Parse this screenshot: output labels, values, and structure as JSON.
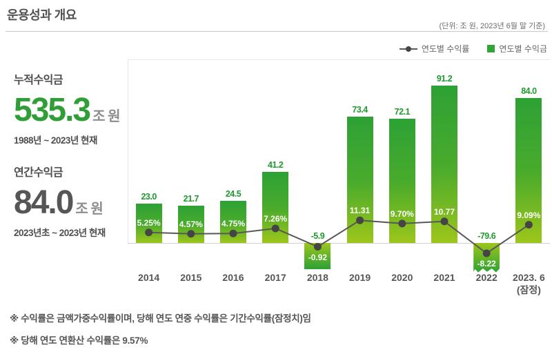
{
  "header": {
    "title": "운용성과 개요",
    "unit_note": "(단위: 조 원, 2023년 6월 말 기준)"
  },
  "stats": {
    "cumulative": {
      "label": "누적수익금",
      "value": "535.3",
      "unit": "조 원",
      "period": "1988년 ~ 2023년 현재"
    },
    "annual": {
      "label": "연간수익금",
      "value": "84.0",
      "unit": "조 원",
      "period": "2023년초 ~ 2023년 현재"
    }
  },
  "legend": {
    "line_label": "연도별 수익률",
    "bar_label": "연도별 수익금"
  },
  "chart_data": {
    "type": "bar",
    "title": "운용성과 개요",
    "categories": [
      "2014",
      "2015",
      "2016",
      "2017",
      "2018",
      "2019",
      "2020",
      "2021",
      "2022",
      "2023. 6"
    ],
    "category_sublabels": [
      "",
      "",
      "",
      "",
      "",
      "",
      "",
      "",
      "",
      "(잠정)"
    ],
    "series": [
      {
        "name": "연도별 수익금",
        "type": "bar",
        "unit": "조 원",
        "values": [
          23.0,
          21.7,
          24.5,
          41.2,
          -5.9,
          73.4,
          72.1,
          91.2,
          -79.6,
          84.0
        ],
        "value_labels": [
          "23.0",
          "21.7",
          "24.5",
          "41.2",
          "-5.9",
          "73.4",
          "72.1",
          "91.2",
          "-79.6",
          "84.0"
        ],
        "truncated_index": 8
      },
      {
        "name": "연도별 수익률",
        "type": "line",
        "unit": "%",
        "values": [
          5.25,
          4.57,
          4.75,
          7.26,
          -0.92,
          11.31,
          9.7,
          10.77,
          -8.22,
          9.09
        ],
        "value_labels": [
          "5.25%",
          "4.57%",
          "4.75%",
          "7.26%",
          "-0.92",
          "11.31",
          "9.70%",
          "10.77",
          "-8.22",
          "9.09%"
        ]
      }
    ],
    "layout": {
      "zero_baseline": true,
      "legend_position": "top-right",
      "grid": false
    },
    "colors": {
      "bar_top": "#2da135",
      "bar_bottom": "#9dc61b",
      "line": "#595757",
      "marker": "#454545",
      "value_label": "#1f9a2f"
    }
  },
  "footnotes": [
    "※ 수익률은 금액가중수익률이며, 당해 연도 연중 수익률은 기간수익률(잠정치)임",
    "※ 당해 연도 연환산 수익률은 9.57%"
  ]
}
